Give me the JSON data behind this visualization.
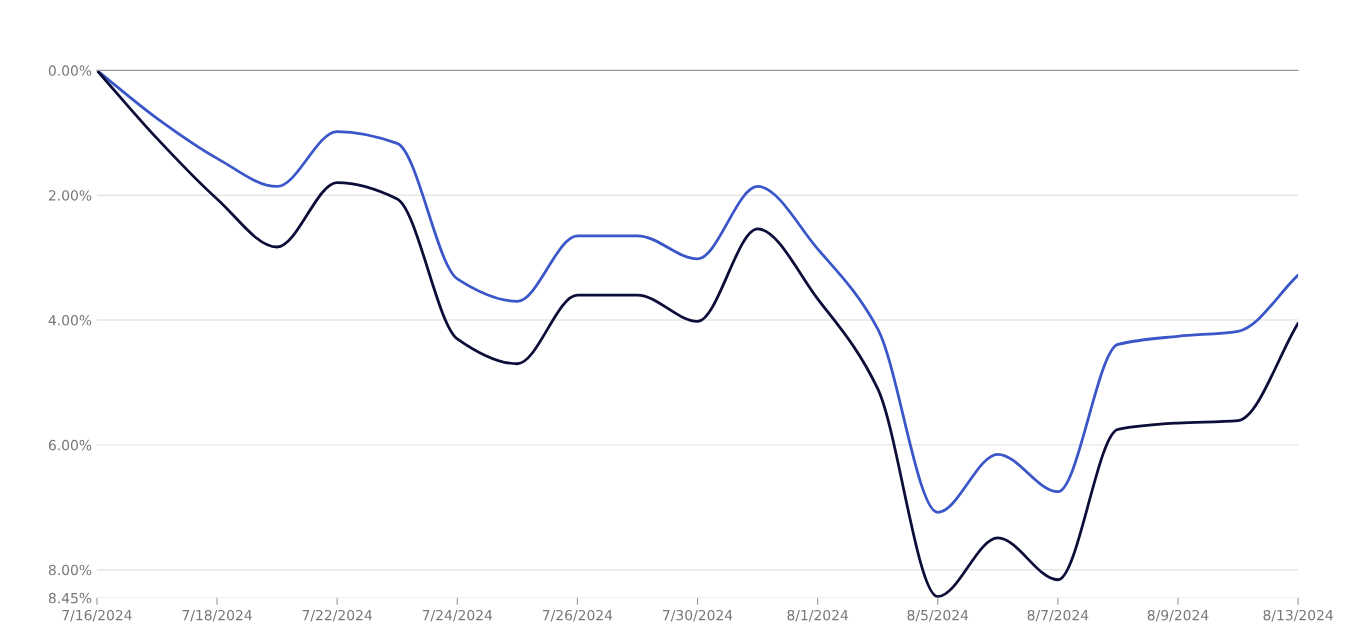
{
  "chart_data": {
    "type": "line",
    "categories": [
      "7/16/2024",
      null,
      "7/18/2024",
      null,
      "7/22/2024",
      null,
      "7/24/2024",
      null,
      "7/26/2024",
      null,
      "7/30/2024",
      null,
      "8/1/2024",
      null,
      "8/5/2024",
      null,
      "8/7/2024",
      null,
      "8/9/2024",
      null,
      "8/13/2024"
    ],
    "series": [
      {
        "color": "#3a56c8",
        "values": [
          0,
          0.77,
          1.41,
          1.86,
          0.98,
          1.17,
          3.34,
          3.7,
          2.65,
          2.65,
          3.02,
          1.86,
          2.86,
          4.14,
          7.08,
          6.15,
          6.75,
          4.39,
          4.26,
          4.18,
          3.28
        ]
      },
      {
        "color": "#0d0d3a",
        "values": [
          0,
          1.09,
          2.06,
          2.83,
          1.8,
          2.06,
          4.3,
          4.7,
          3.6,
          3.6,
          4.02,
          2.54,
          3.66,
          5.1,
          8.43,
          7.49,
          8.16,
          5.75,
          5.65,
          5.61,
          4.05
        ]
      }
    ],
    "ylim": [
      8.45,
      0
    ],
    "yticks": [
      {
        "value": 0,
        "label": "0.00%"
      },
      {
        "value": 2,
        "label": "2.00%"
      },
      {
        "value": 4,
        "label": "4.00%"
      },
      {
        "value": 6,
        "label": "6.00%"
      },
      {
        "value": 8,
        "label": "8.00%"
      },
      {
        "value": 8.45,
        "label": "8.45%"
      }
    ],
    "grid": "y",
    "marker": "none",
    "line_style": "solid"
  }
}
